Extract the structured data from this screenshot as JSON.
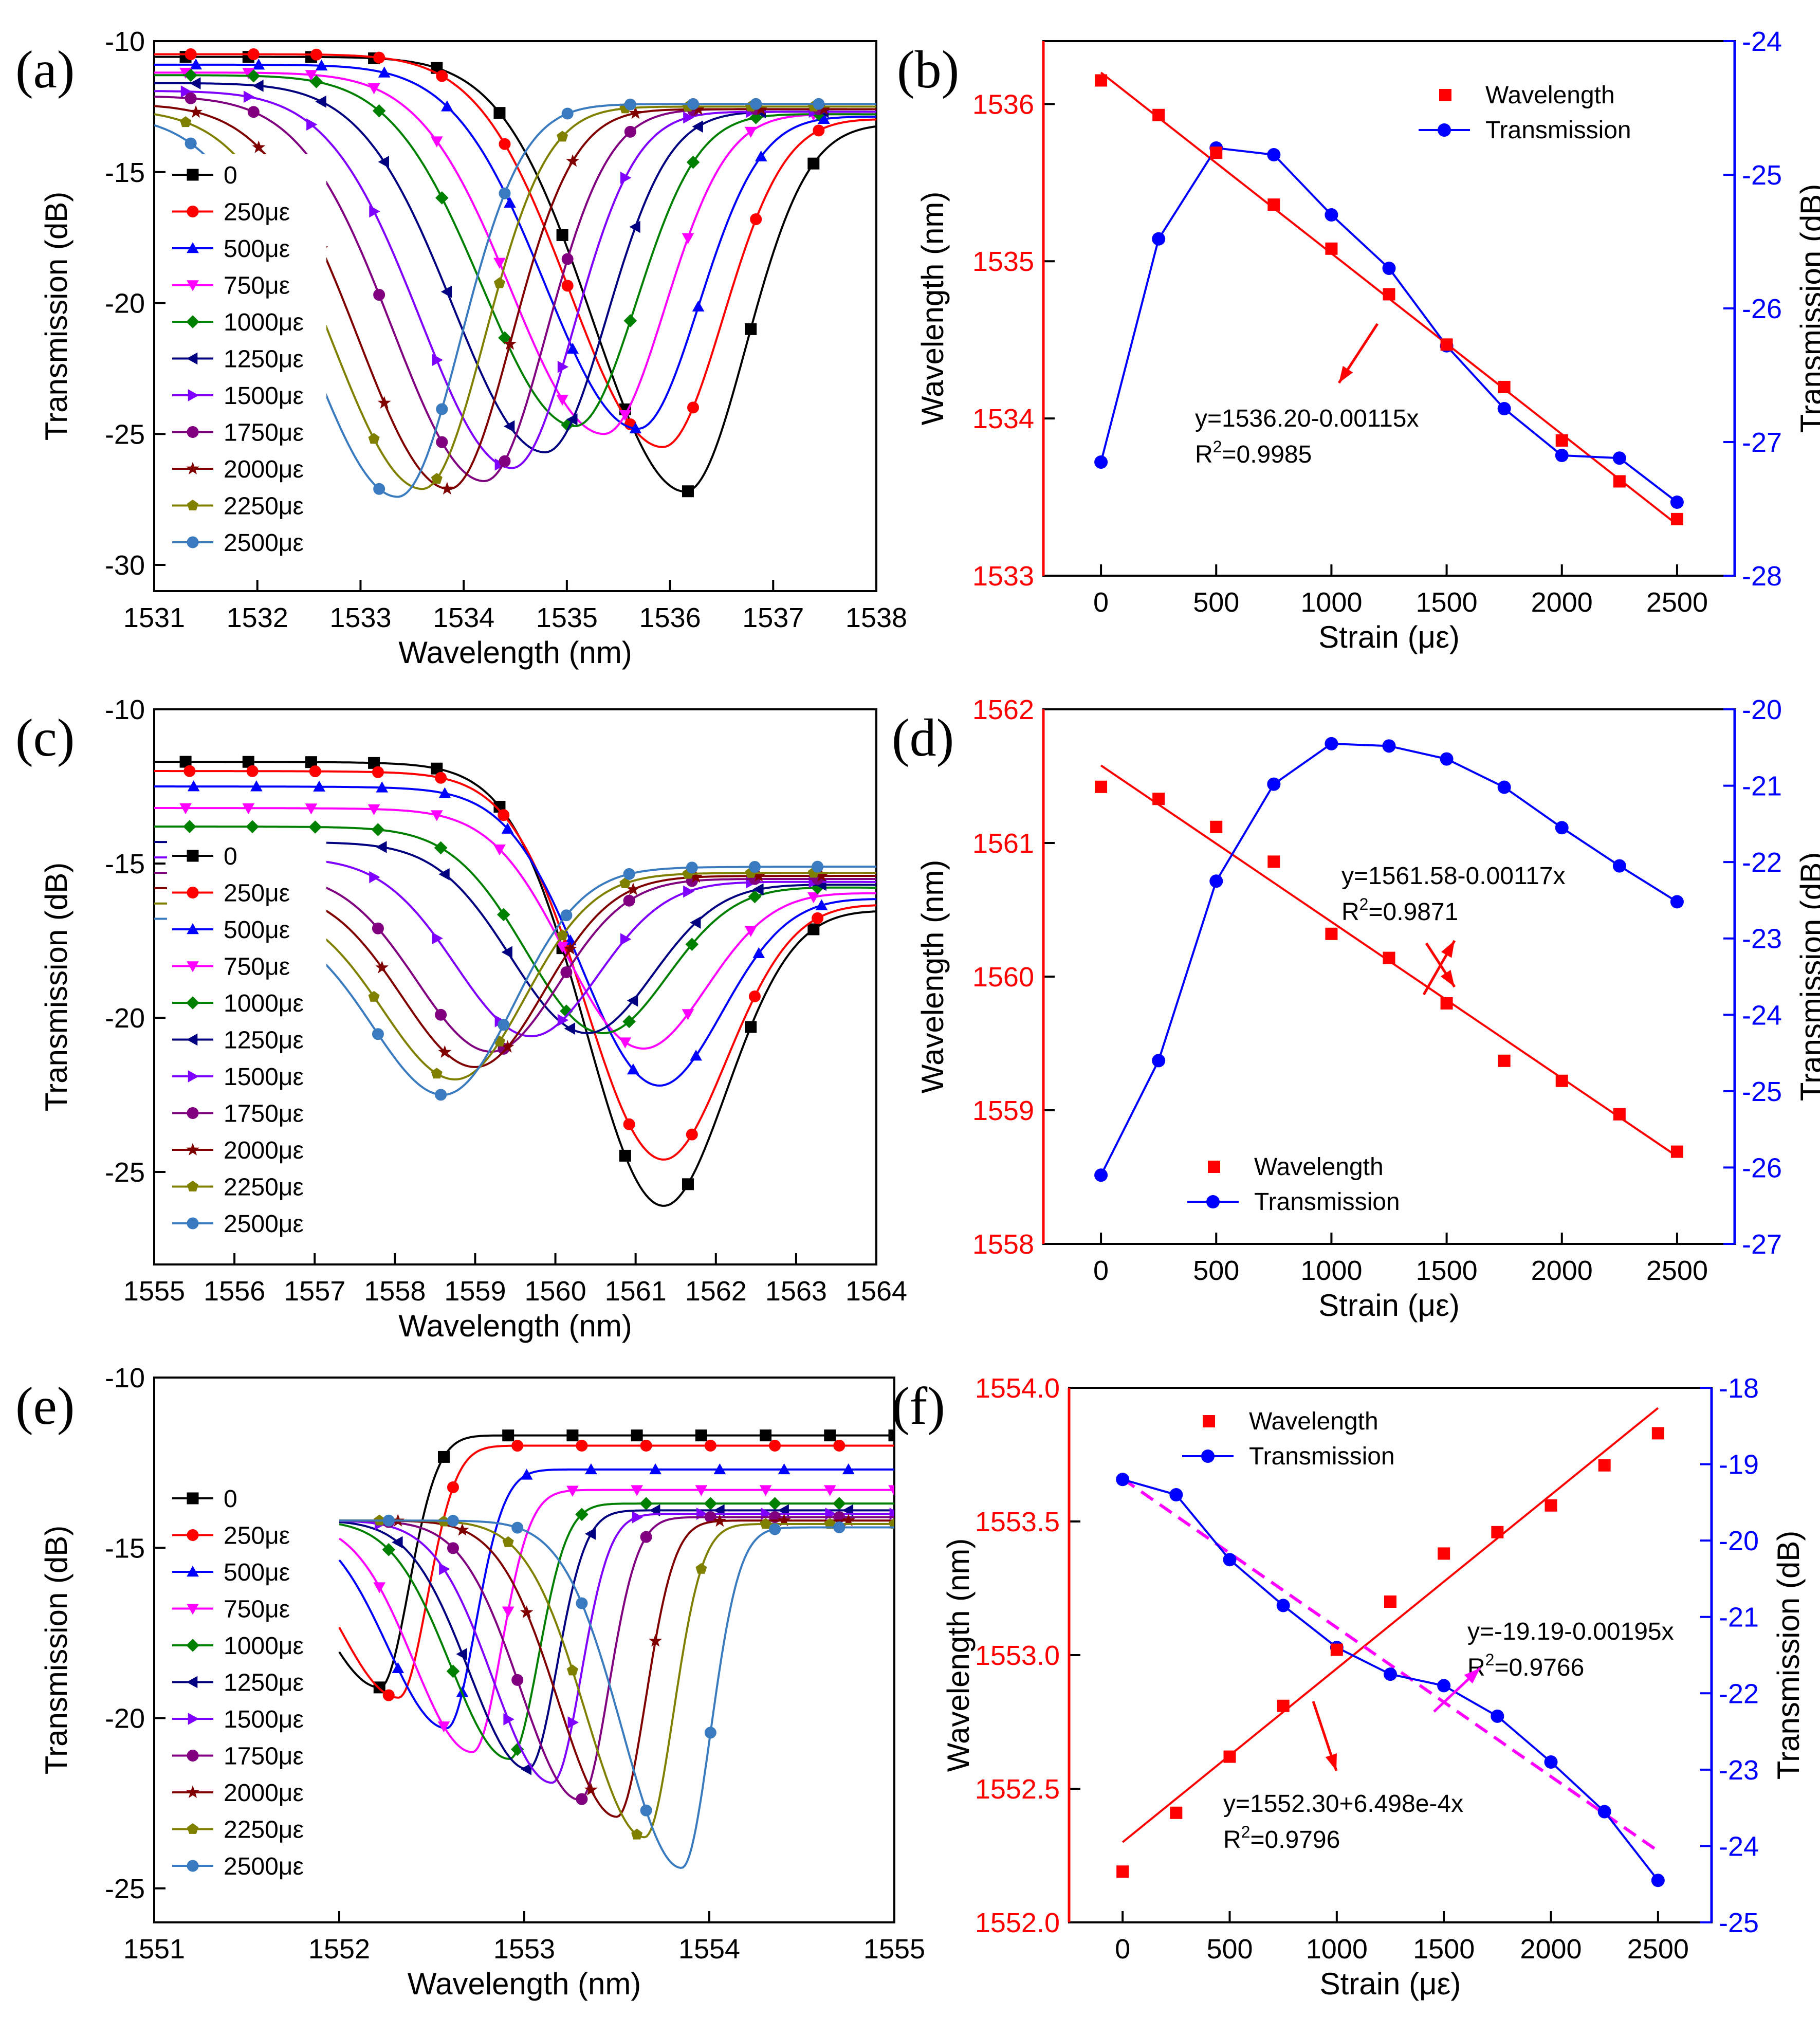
{
  "figure": {
    "colors": {
      "axis": "#000000",
      "red": "#ff0000",
      "blue": "#0000ff",
      "magenta": "#ff00ff",
      "series": [
        "#000000",
        "#ff0000",
        "#0000ff",
        "#ff00ff",
        "#008000",
        "#000080",
        "#8000ff",
        "#800080",
        "#800000",
        "#808000",
        "#3a7bbf"
      ]
    }
  },
  "chart_data": [
    {
      "panel": "(a)",
      "type": "line",
      "xlabel": "Wavelength (nm)",
      "ylabel": "Transmission (dB)",
      "xlim": [
        1531,
        1538
      ],
      "ylim": [
        -31,
        -10
      ],
      "xticks": [
        1531,
        1532,
        1533,
        1534,
        1535,
        1536,
        1537,
        1538
      ],
      "yticks": [
        -10,
        -15,
        -20,
        -25,
        -30
      ],
      "legend": [
        "0",
        "250με",
        "500με",
        "750με",
        "1000με",
        "1250με",
        "1500με",
        "1750με",
        "2000με",
        "2250με",
        "2500με"
      ],
      "legend_position": "left",
      "markers": [
        "square",
        "circle",
        "triangle-up",
        "triangle-down",
        "diamond",
        "triangle-left",
        "triangle-right",
        "circle",
        "star",
        "pentagon",
        "circle"
      ],
      "dip_wavelength": [
        1536.15,
        1535.93,
        1535.69,
        1535.36,
        1535.08,
        1534.79,
        1534.47,
        1534.2,
        1533.86,
        1533.6,
        1533.36
      ],
      "dip_depth": [
        -27.2,
        -25.5,
        -24.8,
        -25.0,
        -24.7,
        -25.7,
        -26.3,
        -26.8,
        -27.1,
        -27.1,
        -27.4
      ],
      "short_baseline": [
        -10.6,
        -10.5,
        -10.9,
        -11.2,
        -11.3,
        -11.6,
        -11.9,
        -12.1,
        -12.4,
        -12.6,
        -12.8
      ],
      "long_baseline": [
        -13.2,
        -13.0,
        -12.9,
        -12.8,
        -12.8,
        -12.7,
        -12.7,
        -12.6,
        -12.6,
        -12.5,
        -12.4
      ]
    },
    {
      "panel": "(b)",
      "type": "scatter",
      "xlabel": "Strain (με)",
      "ylabel": "Wavelength (nm)",
      "y2label": "Transmission (dB)",
      "xlim": [
        -250,
        2750
      ],
      "ylim": [
        1533,
        1536.4
      ],
      "y2lim": [
        -28,
        -24
      ],
      "xticks": [
        0,
        500,
        1000,
        1500,
        2000,
        2500
      ],
      "yticks": [
        1533,
        1534,
        1535,
        1536
      ],
      "y2ticks": [
        -24,
        -25,
        -26,
        -27,
        -28
      ],
      "x": [
        0,
        250,
        500,
        750,
        1000,
        1250,
        1500,
        1750,
        2000,
        2250,
        2500
      ],
      "series": [
        {
          "name": "Wavelength",
          "axis": "left",
          "values": [
            1536.15,
            1535.93,
            1535.69,
            1535.36,
            1535.08,
            1534.79,
            1534.47,
            1534.2,
            1533.86,
            1533.6,
            1533.36
          ]
        },
        {
          "name": "Transmission",
          "axis": "right",
          "values": [
            -27.15,
            -25.48,
            -24.8,
            -24.85,
            -25.3,
            -25.7,
            -26.28,
            -26.75,
            -27.1,
            -27.12,
            -27.45
          ]
        }
      ],
      "fit": {
        "intercept": 1536.2,
        "slope": -0.00115,
        "axis": "left"
      },
      "annotation": {
        "equation": "y=1536.20-0.00115x",
        "r2_label": "R",
        "r2_sup": "2",
        "r2_value": "=0.9985"
      },
      "legend_position": "top-right"
    },
    {
      "panel": "(c)",
      "type": "line",
      "xlabel": "Wavelength (nm)",
      "ylabel": "Transmission (dB)",
      "xlim": [
        1555,
        1564
      ],
      "ylim": [
        -28,
        -10
      ],
      "xticks": [
        1555,
        1556,
        1557,
        1558,
        1559,
        1560,
        1561,
        1562,
        1563,
        1564
      ],
      "yticks": [
        -10,
        -15,
        -20,
        -25
      ],
      "legend": [
        "0",
        "250με",
        "500με",
        "750με",
        "1000με",
        "1250με",
        "1500με",
        "1750με",
        "2000με",
        "2250με",
        "2500με"
      ],
      "legend_position": "left",
      "markers": [
        "square",
        "circle",
        "triangle-up",
        "triangle-down",
        "diamond",
        "triangle-left",
        "triangle-right",
        "circle",
        "star",
        "pentagon",
        "circle"
      ],
      "dip_wavelength": [
        1561.35,
        1561.35,
        1561.3,
        1561.1,
        1560.6,
        1560.4,
        1559.7,
        1559.2,
        1559.0,
        1558.75,
        1558.6
      ],
      "dip_depth": [
        -26.1,
        -24.6,
        -22.2,
        -21.0,
        -20.5,
        -20.5,
        -20.6,
        -21.1,
        -21.6,
        -22.0,
        -22.5
      ],
      "short_baseline": [
        -11.7,
        -12.0,
        -12.5,
        -13.2,
        -13.8,
        -14.3,
        -14.8,
        -15.3,
        -15.8,
        -16.3,
        -16.8
      ],
      "long_baseline": [
        -16.6,
        -16.4,
        -16.2,
        -16.0,
        -15.8,
        -15.7,
        -15.6,
        -15.5,
        -15.4,
        -15.3,
        -15.1
      ]
    },
    {
      "panel": "(d)",
      "type": "scatter",
      "xlabel": "Strain (με)",
      "ylabel": "Wavelength (nm)",
      "y2label": "Transmission (dB)",
      "xlim": [
        -250,
        2750
      ],
      "ylim": [
        1558,
        1562
      ],
      "y2lim": [
        -27,
        -20
      ],
      "xticks": [
        0,
        500,
        1000,
        1500,
        2000,
        2500
      ],
      "yticks": [
        1558,
        1559,
        1560,
        1561,
        1562
      ],
      "y2ticks": [
        -20,
        -21,
        -22,
        -23,
        -24,
        -25,
        -26,
        -27
      ],
      "x": [
        0,
        250,
        500,
        750,
        1000,
        1250,
        1500,
        1750,
        2000,
        2250,
        2500
      ],
      "series": [
        {
          "name": "Wavelength",
          "axis": "left",
          "values": [
            1561.42,
            1561.33,
            1561.12,
            1560.86,
            1560.32,
            1560.14,
            1559.8,
            1559.37,
            1559.22,
            1558.97,
            1558.69
          ]
        },
        {
          "name": "Transmission",
          "axis": "right",
          "values": [
            -26.1,
            -24.6,
            -22.25,
            -20.98,
            -20.45,
            -20.48,
            -20.65,
            -21.02,
            -21.55,
            -22.05,
            -22.52
          ]
        }
      ],
      "fit": {
        "intercept": 1561.58,
        "slope": -0.00117,
        "axis": "left"
      },
      "annotation": {
        "equation": "y=1561.58-0.00117x",
        "r2_label": "R",
        "r2_sup": "2",
        "r2_value": "=0.9871"
      },
      "legend_position": "bottom-center"
    },
    {
      "panel": "(e)",
      "type": "line",
      "xlabel": "Wavelength (nm)",
      "ylabel": "Transmission (dB)",
      "xlim": [
        1551,
        1555
      ],
      "ylim": [
        -26,
        -10
      ],
      "xticks": [
        1551,
        1552,
        1553,
        1554,
        1555
      ],
      "yticks": [
        -10,
        -15,
        -20,
        -25
      ],
      "legend": [
        "0",
        "250με",
        "500με",
        "750με",
        "1000με",
        "1250με",
        "1500με",
        "1750με",
        "2000με",
        "2250με",
        "2500με"
      ],
      "legend_position": "left",
      "markers": [
        "square",
        "circle",
        "triangle-up",
        "triangle-down",
        "diamond",
        "triangle-left",
        "triangle-right",
        "circle",
        "star",
        "pentagon",
        "circle"
      ],
      "dip_wavelength": [
        1552.22,
        1552.32,
        1552.58,
        1552.72,
        1552.92,
        1553.02,
        1553.15,
        1553.3,
        1553.5,
        1553.65,
        1553.85
      ],
      "dip_depth": [
        -19.1,
        -19.4,
        -20.3,
        -21.0,
        -21.2,
        -21.5,
        -21.9,
        -22.4,
        -22.9,
        -23.5,
        -24.4
      ],
      "long_baseline": [
        -11.7,
        -12.0,
        -12.7,
        -13.3,
        -13.7,
        -13.9,
        -14.0,
        -14.1,
        -14.2,
        -14.3,
        -14.4
      ]
    },
    {
      "panel": "(f)",
      "type": "scatter",
      "xlabel": "Strain (με)",
      "ylabel": "Wavelength (nm)",
      "y2label": "Transmission (dB)",
      "xlim": [
        -250,
        2750
      ],
      "ylim": [
        1552.0,
        1554.0
      ],
      "y2lim": [
        -25,
        -18
      ],
      "xticks": [
        0,
        500,
        1000,
        1500,
        2000,
        2500
      ],
      "yticks": [
        "1552.0",
        "1552.5",
        "1553.0",
        "1553.5",
        "1554.0"
      ],
      "y2ticks": [
        -18,
        -19,
        -20,
        -21,
        -22,
        -23,
        -24,
        -25
      ],
      "x": [
        0,
        250,
        500,
        750,
        1000,
        1250,
        1500,
        1750,
        2000,
        2250,
        2500
      ],
      "series": [
        {
          "name": "Wavelength",
          "axis": "left",
          "values": [
            1552.19,
            1552.41,
            1552.62,
            1552.81,
            1553.02,
            1553.2,
            1553.38,
            1553.46,
            1553.56,
            1553.71,
            1553.83
          ]
        },
        {
          "name": "Transmission",
          "axis": "right",
          "values": [
            -19.2,
            -19.4,
            -20.25,
            -20.85,
            -21.4,
            -21.75,
            -21.9,
            -22.3,
            -22.9,
            -23.55,
            -24.45
          ]
        }
      ],
      "fits": [
        {
          "intercept": 1552.3,
          "slope": 0.0006498,
          "axis": "left",
          "style": "solid"
        },
        {
          "intercept": -19.19,
          "slope": -0.00195,
          "axis": "right",
          "style": "dashed"
        }
      ],
      "annotations": [
        {
          "equation": "y=1552.30+6.498e-4x",
          "r2_label": "R",
          "r2_sup": "2",
          "r2_value": "=0.9796"
        },
        {
          "equation": "y=-19.19-0.00195x",
          "r2_label": "R",
          "r2_sup": "2",
          "r2_value": "=0.9766"
        }
      ],
      "legend_position": "top-left"
    }
  ]
}
